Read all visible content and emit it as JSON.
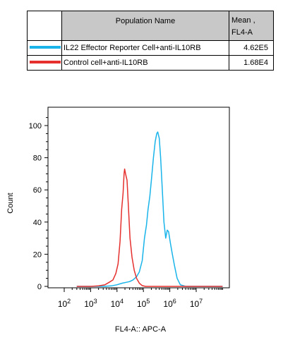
{
  "legend": {
    "header_name": "Population Name",
    "header_mean_line1": "Mean ,",
    "header_mean_line2": "FL4-A",
    "rows": [
      {
        "name": "IL22 Effector Reporter Cell+anti-IL10RB",
        "mean": "4.62E5",
        "color": "#19b4ea"
      },
      {
        "name": "Control cell+anti-IL10RB",
        "mean": "1.68E4",
        "color": "#e5302e"
      }
    ]
  },
  "chart_data": {
    "type": "line",
    "xlabel": "FL4-A:: APC-A",
    "ylabel": "Count",
    "x_scale": "log",
    "xlim": [
      300,
      100000000.0
    ],
    "ylim": [
      0,
      110
    ],
    "yticks": [
      0,
      20,
      40,
      60,
      80,
      100
    ],
    "xticks": [
      {
        "value": 100,
        "base": "10",
        "exp": "2"
      },
      {
        "value": 1000,
        "base": "10",
        "exp": "3"
      },
      {
        "value": 10000,
        "base": "10",
        "exp": "4"
      },
      {
        "value": 100000,
        "base": "10",
        "exp": "5"
      },
      {
        "value": 1000000,
        "base": "10",
        "exp": "6"
      },
      {
        "value": 10000000,
        "base": "10",
        "exp": "7"
      }
    ],
    "series": [
      {
        "name": "Control cell+anti-IL10RB",
        "color": "#e5302e",
        "points": [
          [
            300,
            0
          ],
          [
            1000,
            0
          ],
          [
            2000,
            0.3
          ],
          [
            3500,
            1
          ],
          [
            5000,
            2.5
          ],
          [
            7000,
            4
          ],
          [
            9000,
            8
          ],
          [
            11000,
            14
          ],
          [
            13000,
            28
          ],
          [
            15000,
            48
          ],
          [
            17000,
            58
          ],
          [
            18500,
            70
          ],
          [
            19500,
            73
          ],
          [
            21000,
            70
          ],
          [
            24000,
            66
          ],
          [
            27000,
            50
          ],
          [
            31000,
            30
          ],
          [
            37000,
            18
          ],
          [
            45000,
            10
          ],
          [
            55000,
            5
          ],
          [
            70000,
            2
          ],
          [
            90000,
            0.5
          ],
          [
            120000,
            0
          ],
          [
            200000,
            0
          ],
          [
            100000000.0,
            0
          ]
        ]
      },
      {
        "name": "IL22 Effector Reporter Cell+anti-IL10RB",
        "color": "#19b4ea",
        "points": [
          [
            300,
            0
          ],
          [
            3000,
            0
          ],
          [
            6000,
            0.3
          ],
          [
            10000,
            1
          ],
          [
            16000,
            2
          ],
          [
            22000,
            2.5
          ],
          [
            30000,
            3
          ],
          [
            40000,
            4
          ],
          [
            55000,
            6
          ],
          [
            70000,
            9
          ],
          [
            90000,
            16
          ],
          [
            110000,
            30
          ],
          [
            130000,
            38
          ],
          [
            150000,
            48
          ],
          [
            175000,
            56
          ],
          [
            200000,
            66
          ],
          [
            240000,
            80
          ],
          [
            280000,
            90
          ],
          [
            320000,
            95
          ],
          [
            350000,
            96
          ],
          [
            400000,
            92
          ],
          [
            450000,
            80
          ],
          [
            520000,
            60
          ],
          [
            600000,
            40
          ],
          [
            700000,
            30
          ],
          [
            800000,
            35
          ],
          [
            900000,
            34
          ],
          [
            1050000,
            27
          ],
          [
            1250000,
            20
          ],
          [
            1500000,
            13
          ],
          [
            1900000,
            5
          ],
          [
            2500000,
            1
          ],
          [
            4000000,
            0
          ],
          [
            100000000.0,
            0
          ]
        ]
      }
    ]
  }
}
